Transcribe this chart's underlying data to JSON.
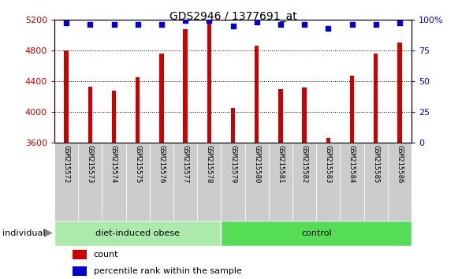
{
  "title": "GDS2946 / 1377691_at",
  "samples": [
    "GSM215572",
    "GSM215573",
    "GSM215574",
    "GSM215575",
    "GSM215576",
    "GSM215577",
    "GSM215578",
    "GSM215579",
    "GSM215580",
    "GSM215581",
    "GSM215582",
    "GSM215583",
    "GSM215584",
    "GSM215585",
    "GSM215586"
  ],
  "bar_values": [
    4800,
    4320,
    4270,
    4450,
    4760,
    5070,
    5190,
    4050,
    4860,
    4290,
    4310,
    3660,
    4470,
    4760,
    4900
  ],
  "percentile_values": [
    97,
    96,
    96,
    96,
    96,
    99,
    99,
    95,
    98,
    96,
    96,
    93,
    96,
    96,
    97
  ],
  "bar_color": "#cc0000",
  "dot_color": "#0000cc",
  "ylim_left": [
    3600,
    5200
  ],
  "ylim_right": [
    0,
    100
  ],
  "yticks_left": [
    3600,
    4000,
    4400,
    4800,
    5200
  ],
  "yticks_right": [
    0,
    25,
    50,
    75,
    100
  ],
  "ytick_labels_right": [
    "0",
    "25",
    "50",
    "75",
    "100%"
  ],
  "grid_values": [
    4000,
    4400,
    4800
  ],
  "groups": [
    {
      "label": "diet-induced obese",
      "start": 0,
      "end": 7,
      "color": "#aaeaaa"
    },
    {
      "label": "control",
      "start": 7,
      "end": 15,
      "color": "#55dd55"
    }
  ],
  "legend_items": [
    {
      "color": "#cc0000",
      "label": "count"
    },
    {
      "color": "#0000cc",
      "label": "percentile rank within the sample"
    }
  ],
  "bar_width": 0.18,
  "tick_bg_color": "#cccccc",
  "plot_bg": "#ffffff",
  "spine_color": "#000000"
}
